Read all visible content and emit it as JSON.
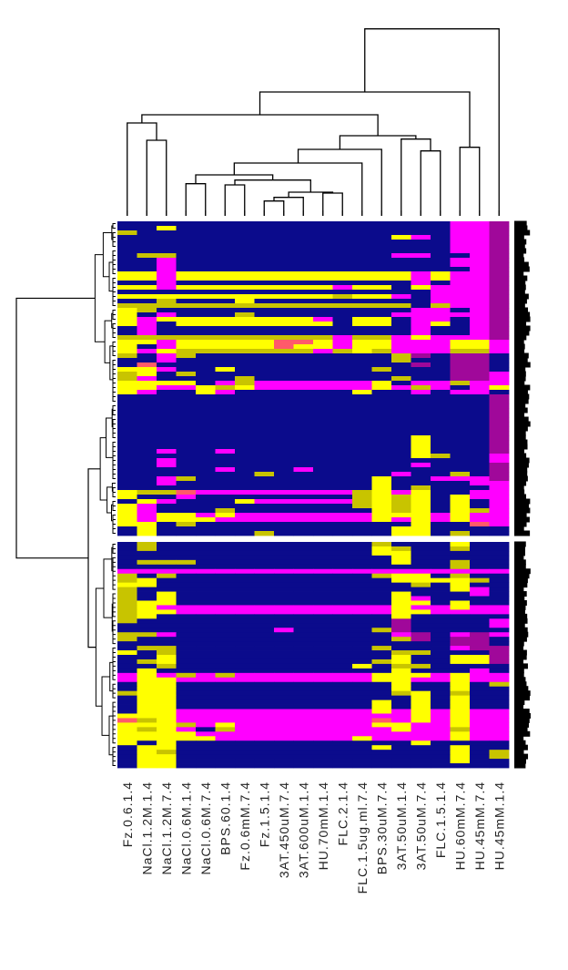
{
  "chart_data": {
    "type": "heatmap",
    "title": "",
    "xlabel": "",
    "ylabel": "",
    "columns": [
      "Fz.0.6.1.4",
      "NaCl.1.2M.1.4",
      "NaCl.1.2M.7.4",
      "NaCl.0.6M.1.4",
      "NaCl.0.6M.7.4",
      "BPS.60.1.4",
      "Fz.0.6mM.7.4",
      "Fz.1.5.1.4",
      "3AT.450uM.7.4",
      "3AT.600uM.1.4",
      "HU.70mM.1.4",
      "FLC.2.1.4",
      "FLC.1.5ug.ml.7.4",
      "BPS.30uM.7.4",
      "3AT.50uM.1.4",
      "3AT.50uM.7.4",
      "FLC.1.5.1.4",
      "HU.60mM.7.4",
      "HU.45mM.7.4",
      "HU.45mM.1.4"
    ],
    "column_dendrogram": true,
    "row_dendrogram": true,
    "row_labels_legible": false,
    "value_codes": {
      "0": "no change",
      "1": "yellow",
      "2": "magenta",
      "3": "dark magenta",
      "4": "olive",
      "5": "red"
    },
    "colors": {
      "0": "#0b0b8c",
      "1": "#ffff00",
      "2": "#ff00ff",
      "3": "#a0089a",
      "4": "#c8c400",
      "5": "#ff5a6a"
    },
    "row_blocks": [
      {
        "rows": [
          "00000000000000000223",
          "00100000000000000223",
          "40000000000000000223",
          "00000000000000120223",
          "00000000000000000223",
          "00000000000000000223",
          "00000000000000000223",
          "04400000000000220023",
          "00200000000000000223",
          "00200000000000000223",
          "00200000000000000023",
          "11211111111111121223",
          "11211111111111121223",
          "00200000000000020223",
          "11211111111211012223",
          "00000000000000002223",
          "11111111111411202223",
          "00400010000000002223",
          "44444444444444404223",
          "14000000000000022023",
          "10200040000000222223",
          "12111111112011022023",
          "12011111111011021023",
          "02000000000000020023",
          "02000000000000020023",
          "44444444444244212223",
          "11211111551211222112",
          "10211111511211222112",
          "12144444442414222442",
          "40240000000000430330",
          "00200000000000400330",
          "05000000000000030330",
          "11200100000004000330",
          "41040000000000000332",
          "42000040000000400332",
          "11110242222221022422",
          "11221412222221242021",
          "12001200000010020220",
          "00000000000000000003",
          "00000000000000000003",
          "00000000000000000003",
          "00000000000000000003",
          "00000000000000000003",
          "00000000000000000003",
          "00000000000000000003",
          "00000000000000000003",
          "00000000000000000003",
          "00000000000000010003",
          "00000000000000010003",
          "00000000000000010003",
          "00200200000000010003",
          "00000000000000014002",
          "00200000000000000002",
          "00200000000000020003",
          "00000200020000000003",
          "00000004000000200403",
          "00240000000001002223",
          "00200000000001000022",
          "00000000000001040002",
          "14452222222241210022",
          "10020000000041410122",
          "01200012222241410102",
          "12000000000041410102",
          "12000400000001410142",
          "12112122222221112122",
          "12111222222221212122",
          "11040000000000010052",
          "01000000000000110000",
          "01000004000000110400"
        ]
      },
      {
        "rows": [
          "04000000000004000100",
          "04000000000001400400",
          "00000000000001100000",
          "00000000000000100000",
          "04440000000000100400",
          "00000000000000000400",
          "22222222222222222222",
          "40400000000004110400",
          "41000000000000111140",
          "11000000000000040100",
          "40000000000000000120",
          "40100000000000100020",
          "40100000000000120000",
          "41100000000000110100",
          "41222222222222122122",
          "41122222222222112222",
          "41000000000000100000",
          "40000000000000300002",
          "00000000000000300002",
          "00000000200004300000",
          "44200000000000230232",
          "40000000000000430330",
          "00000000000000000330",
          "04400000000004000233",
          "10400000000000440003",
          "00100000000000100113",
          "04100000000004100113",
          "00400000000010440000",
          "01000000000000100020",
          "21242422222221112122",
          "21122222222221122122",
          "01100000000000100104",
          "01100000000000100100",
          "41100000000000410400",
          "01100000000000010100",
          "01100000000001010100",
          "01100000000001010100",
          "01122222222221212122",
          "11122222222222212122",
          "54122222222225212122",
          "11142122222221122122",
          "14120422222222122422",
          "11112222222222222122",
          "11111222222212222122",
          "10100000000000010000",
          "01100000000001000100",
          "01400000000000000104",
          "01100000000000000104",
          "01100000000000000100",
          "01100000000000000000"
        ]
      }
    ]
  }
}
